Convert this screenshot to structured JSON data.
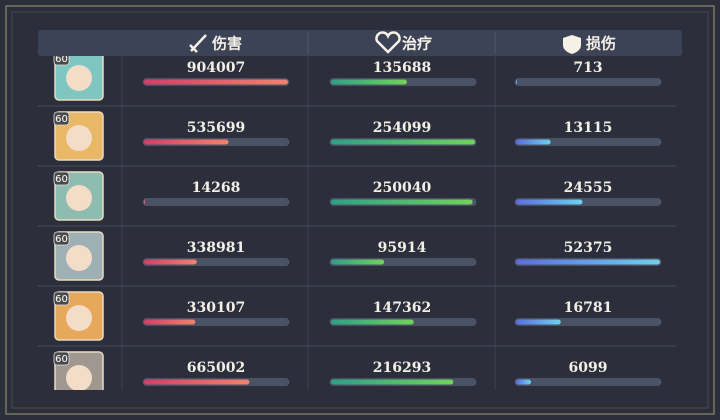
{
  "header": {
    "columns": [
      "伤害",
      "治疗",
      "损伤"
    ]
  },
  "rows": [
    {
      "level": 60,
      "damage": 904007,
      "healing": 135688,
      "taken": 713
    },
    {
      "level": 60,
      "damage": 535699,
      "healing": 254099,
      "taken": 13115
    },
    {
      "level": 60,
      "damage": 14268,
      "healing": 250040,
      "taken": 24555
    },
    {
      "level": 60,
      "damage": 338981,
      "healing": 95914,
      "taken": 52375
    },
    {
      "level": 60,
      "damage": 330107,
      "healing": 147362,
      "taken": 16781
    },
    {
      "level": 60,
      "damage": 665002,
      "healing": 216293,
      "taken": 6099
    }
  ]
}
